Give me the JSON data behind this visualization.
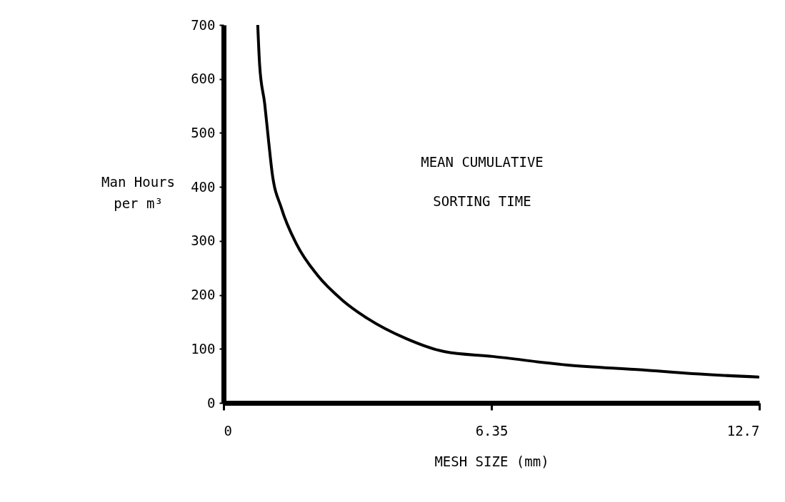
{
  "chart_data": {
    "type": "line",
    "xlabel": "MESH SIZE (mm)",
    "ylabel": "Man Hours per m³",
    "annotations": [
      "MEAN CUMULATIVE",
      "SORTING TIME"
    ],
    "xlim": [
      0,
      12.7
    ],
    "xticks": [
      0,
      6.35,
      12.7
    ],
    "ylim": [
      0,
      700
    ],
    "yticks": [
      0,
      100,
      200,
      300,
      400,
      500,
      600,
      700
    ],
    "grid": false,
    "series": [
      {
        "color": "#000000",
        "x": [
          0.81,
          0.855,
          0.975,
          1.07,
          1.15,
          1.37,
          1.73,
          2.22,
          2.82,
          3.42,
          4.33,
          5.23,
          6.38,
          8.16,
          9.94,
          11.12,
          12.68
        ],
        "values": [
          700,
          626,
          554,
          483,
          427,
          361,
          294,
          237,
          190,
          156,
          119,
          95,
          86,
          70,
          61,
          54,
          48
        ]
      }
    ]
  }
}
